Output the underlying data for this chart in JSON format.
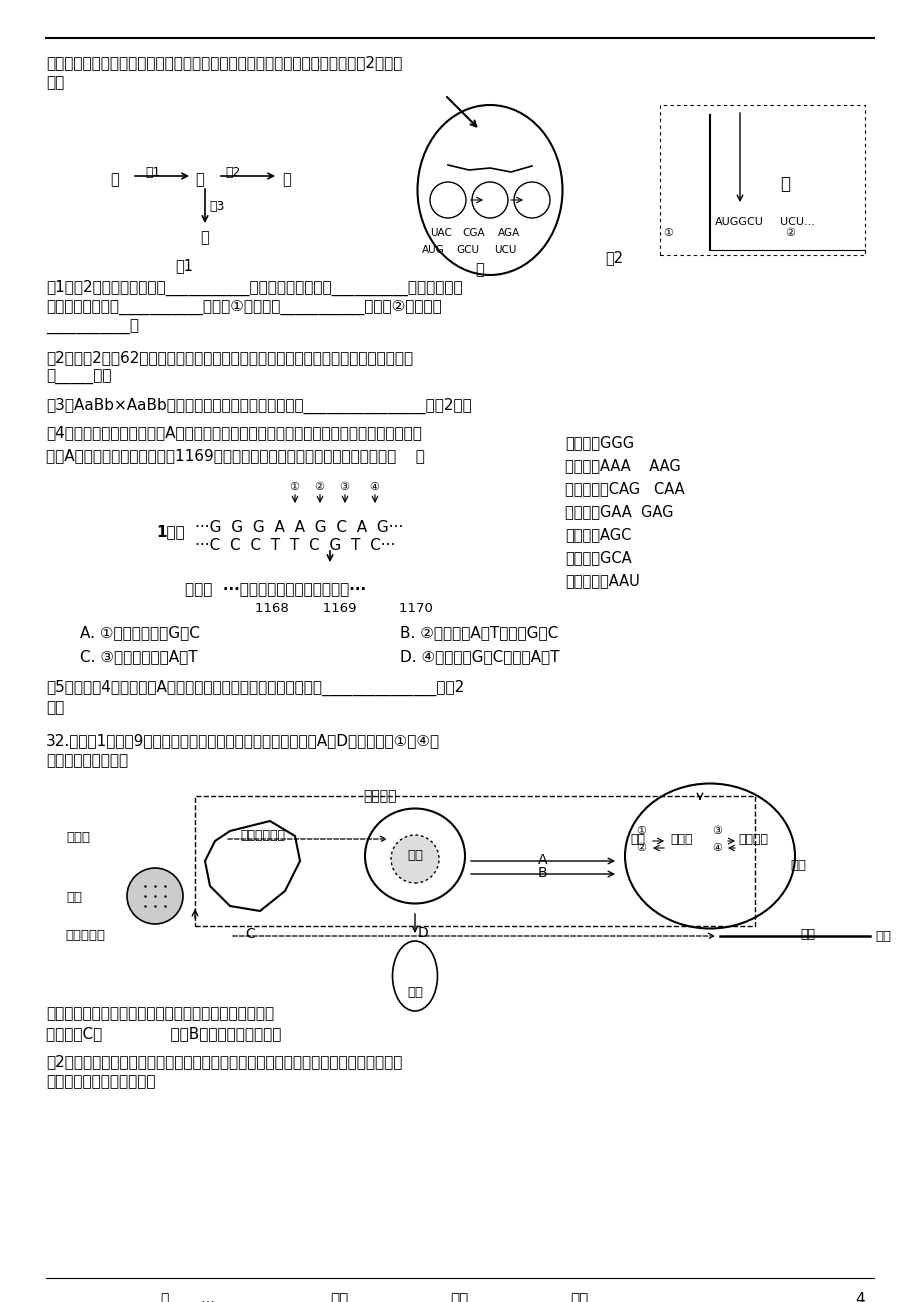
{
  "bg_color": "#ffffff",
  "page_width": 9.2,
  "page_height": 13.02,
  "intro_text1": "质积累表现为青色壳，丁积累表现为花斑色壳。基因控制酶合成的大致过程如图2。请回",
  "intro_text2": "答：",
  "q1_l1": "（1）图2中甲结构的名称是___________；乙结构中正在发生__________过程，该过程",
  "q1_l2": "中起模板作用的是___________；图中①的名称是___________；图中②的名称是",
  "q1_l3": "___________。",
  "q2_l1": "（2）若酶2含有62个氨基酸，由一条肽链组成，那么决定它的合成的基因至少应含有碱",
  "q2_l2": "基_____个。",
  "q3": "（3）AaBb×AaBb杂交，后代的成体表现型及比例为________________。（2分）",
  "q4_l1": "（4）若下图为日本明蟹壳色A基因部分碱基序列及其编码蛋白质的部分氨基酸序列示意图。",
  "q4_l2": "已知A基因发生一种突变，导致1169位赖氨酸变为谷氨酸。该基因发生的突变是（    ）",
  "codon_lines": [
    "甘氨酸：GGG",
    "赖氨酸：AAA    AAG",
    "谷氨酰胺：CAG   CAA",
    "谷氨酸：GAA  GAG",
    "丝氨酸：AGC",
    "丙氨酸：GCA",
    "天冬氨酸：AAU"
  ],
  "gene_label": "1基因",
  "dna_top": "···G  G  G  A  A  G  C  A  G···",
  "dna_bot": "···C  C  C  T  T  C  G  T  C···",
  "protein_line": "蛋白质  ···甘氨酸－赖氨酸－谷氨酰胺···",
  "protein_nums": "1168        1169          1170",
  "opt_A": "A. ①处插入碱基对G－C",
  "opt_B": "B. ②处碱基对A－T替换为G－C",
  "opt_C": "C. ③处缺失碱基对A－T",
  "opt_D": "D. ④处碱基对G－C替换为A－T",
  "q5_l1": "（5）根据（4）题图写出A基因转录的模板链的局部对应碱基序列_______________。（2",
  "q5_l2": "分）",
  "q32_l1": "32.（每空1分，共9分）下图表示下丘脑参与的部分调节过程，A～D代表激素，①～④表",
  "q32_l2": "示过程。据图回答：",
  "nerve_top": "有关神经",
  "another_nerve": "另一有关神经",
  "hypothalamus_lbl": "下丘脑",
  "pituitary_lbl": "垂体",
  "pancreas_lbl": "胰脏",
  "liver_lbl": "肝脏",
  "blood_vessel_lbl": "血管",
  "blood_sugar_lbl": "血糖",
  "glycogen_lbl": "糖原",
  "glucose_lbl": "葡萄糖",
  "decomp_lbl": "分解产物",
  "low_glucose_lbl": "低血糖刺激",
  "q32q1_l1": "由神经调节肝脏的代谢；另一方面由有关神经促进肾上腺",
  "q32q1_l2": "分泌激素C、              激素B，以协同升高血糖。",
  "q32q2_l1": "（2）给成年的肥胖者和非肥胖者一次性口服足量的葡萄糖溶液后，测定血液中葡萄糖和",
  "q32q2_l2": "胰岛素浓度，结果如下图。",
  "kidney_lbl": "肾脏",
  "fig_lbl": "图",
  "dots_lbl": "…",
  "footer_1": "用心",
  "footer_2": "爱心",
  "footer_3": "专心",
  "page_num": "4"
}
